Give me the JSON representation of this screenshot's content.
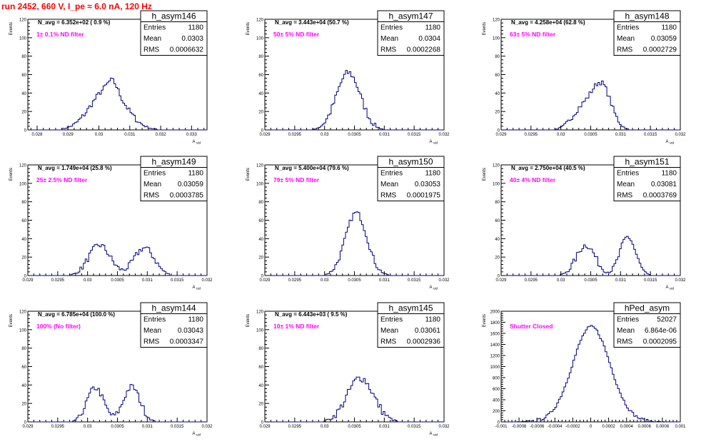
{
  "title": "run 2452,   660 V, I_pe ≈ 6.0 nA, 120 Hz",
  "stat_labels": {
    "entries": "Entries",
    "mean": "Mean",
    "rms": "RMS"
  },
  "colors": {
    "title": "#ff0000",
    "annotation": "#ff00ff",
    "hist": "#000080",
    "axis": "#000000"
  },
  "chart_data": [
    {
      "type": "histogram",
      "name": "h_asym146",
      "navg": "N_avg = 6.352e+02 ( 0.9 %)",
      "note": "1± 0.1% ND filter",
      "entries": "1180",
      "mean": "0.0303",
      "rms": "0.0006632",
      "ylabel": "Events",
      "xlabel": "A_uid",
      "xlim": [
        0.0277,
        0.0335
      ],
      "ylim": [
        0,
        120
      ],
      "xticks": [
        "0.028",
        "0.029",
        "0.03",
        "0.031",
        "0.032",
        "0.033"
      ],
      "xtick_values": [
        0.028,
        0.029,
        0.03,
        0.031,
        0.032,
        0.033
      ],
      "yticks": [
        "0",
        "20",
        "40",
        "60",
        "80",
        "100",
        "120"
      ],
      "shape": {
        "peaks": [
          [
            0.0303,
            45,
            0.00055
          ],
          [
            0.03045,
            10,
            0.00015
          ]
        ],
        "noise": 6,
        "bins": 100
      }
    },
    {
      "type": "histogram",
      "name": "h_asym147",
      "navg": "N_avg = 3.443e+04 (50.7 %)",
      "note": "50± 5% ND filter",
      "entries": "1180",
      "mean": "0.0304",
      "rms": "0.0002268",
      "ylabel": "Events",
      "xlabel": "A_uid",
      "xlim": [
        0.029,
        0.032
      ],
      "ylim": [
        0,
        120
      ],
      "xticks": [
        "0.029",
        "0.0295",
        "0.03",
        "0.0305",
        "0.031",
        "0.0315",
        "0.032"
      ],
      "xtick_values": [
        0.029,
        0.0295,
        0.03,
        0.0305,
        0.031,
        0.0315,
        0.032
      ],
      "yticks": [
        "0",
        "20",
        "40",
        "60",
        "80",
        "100",
        "120"
      ],
      "shape": {
        "peaks": [
          [
            0.0304,
            62,
            0.0002
          ]
        ],
        "noise": 8,
        "bins": 100
      }
    },
    {
      "type": "histogram",
      "name": "h_asym148",
      "navg": "N_avg = 4.258e+04 (62.8 %)",
      "note": "63± 5% ND filter",
      "entries": "1180",
      "mean": "0.03059",
      "rms": "0.0002729",
      "ylabel": "Events",
      "xlabel": "A_uid",
      "xlim": [
        0.029,
        0.032
      ],
      "ylim": [
        0,
        120
      ],
      "xticks": [
        "0.029",
        "0.0295",
        "0.03",
        "0.0305",
        "0.031",
        "0.0315",
        "0.032"
      ],
      "xtick_values": [
        0.029,
        0.0295,
        0.03,
        0.0305,
        0.031,
        0.0315,
        0.032
      ],
      "yticks": [
        "0",
        "20",
        "40",
        "60",
        "80",
        "100",
        "120"
      ],
      "shape": {
        "peaks": [
          [
            0.03068,
            48,
            0.00016
          ],
          [
            0.03035,
            22,
            0.00017
          ]
        ],
        "noise": 6,
        "bins": 100
      }
    },
    {
      "type": "histogram",
      "name": "h_asym149",
      "navg": "N_avg = 1.749e+04 (25.8 %)",
      "note": "25± 2.5% ND filter",
      "entries": "1180",
      "mean": "0.03059",
      "rms": "0.0003785",
      "ylabel": "Events",
      "xlabel": "A_uid",
      "xlim": [
        0.029,
        0.032
      ],
      "ylim": [
        0,
        120
      ],
      "xticks": [
        "0.029",
        "0.0295",
        "0.03",
        "0.0305",
        "0.031",
        "0.0315",
        "0.032"
      ],
      "xtick_values": [
        0.029,
        0.0295,
        0.03,
        0.0305,
        0.031,
        0.0315,
        0.032
      ],
      "yticks": [
        "0",
        "20",
        "40",
        "60",
        "80",
        "100",
        "120"
      ],
      "shape": {
        "peaks": [
          [
            0.0302,
            33,
            0.00018
          ],
          [
            0.03095,
            30,
            0.00017
          ]
        ],
        "noise": 7,
        "bins": 100
      }
    },
    {
      "type": "histogram",
      "name": "h_asym150",
      "navg": "N_avg = 5.400e+04 (79.6 %)",
      "note": "79± 5% ND filter",
      "entries": "1180",
      "mean": "0.03053",
      "rms": "0.0001975",
      "ylabel": "Events",
      "xlabel": "A_uid",
      "xlim": [
        0.029,
        0.032
      ],
      "ylim": [
        0,
        120
      ],
      "xticks": [
        "0.029",
        "0.0295",
        "0.03",
        "0.0305",
        "0.031",
        "0.0315",
        "0.032"
      ],
      "xtick_values": [
        0.029,
        0.0295,
        0.03,
        0.0305,
        0.031,
        0.0315,
        0.032
      ],
      "yticks": [
        "0",
        "20",
        "40",
        "60",
        "80",
        "100",
        "120"
      ],
      "shape": {
        "peaks": [
          [
            0.03053,
            68,
            0.00018
          ]
        ],
        "noise": 6,
        "bins": 100
      }
    },
    {
      "type": "histogram",
      "name": "h_asym151",
      "navg": "N_avg = 2.750e+04 (40.5 %)",
      "note": "40± 4% ND filter",
      "entries": "1180",
      "mean": "0.03081",
      "rms": "0.0003769",
      "ylabel": "Events",
      "xlabel": "A_uid",
      "xlim": [
        0.029,
        0.032
      ],
      "ylim": [
        0,
        120
      ],
      "xticks": [
        "0.029",
        "0.0295",
        "0.03",
        "0.0305",
        "0.031",
        "0.0315",
        "0.032"
      ],
      "xtick_values": [
        0.029,
        0.0295,
        0.03,
        0.0305,
        0.031,
        0.0315,
        0.032
      ],
      "yticks": [
        "0",
        "20",
        "40",
        "60",
        "80",
        "100",
        "120"
      ],
      "shape": {
        "peaks": [
          [
            0.03042,
            33,
            0.00016
          ],
          [
            0.03112,
            42,
            0.00013
          ]
        ],
        "noise": 7,
        "bins": 100
      }
    },
    {
      "type": "histogram",
      "name": "h_asym144",
      "navg": "N_avg = 6.785e+04 (100.0 %)",
      "note": "100% (No filter)",
      "entries": "1180",
      "mean": "0.03043",
      "rms": "0.0003347",
      "ylabel": "Events",
      "xlabel": "A_uid",
      "xlim": [
        0.029,
        0.032
      ],
      "ylim": [
        0,
        120
      ],
      "xticks": [
        "0.029",
        "0.0295",
        "0.03",
        "0.0305",
        "0.031",
        "0.0315",
        "0.032"
      ],
      "xtick_values": [
        0.029,
        0.0295,
        0.03,
        0.0305,
        0.031,
        0.0315,
        0.032
      ],
      "yticks": [
        "0",
        "20",
        "40",
        "60",
        "80",
        "100",
        "120"
      ],
      "shape": {
        "peaks": [
          [
            0.03013,
            37,
            0.00014
          ],
          [
            0.03074,
            38,
            0.00014
          ]
        ],
        "noise": 7,
        "bins": 100
      }
    },
    {
      "type": "histogram",
      "name": "h_asym145",
      "navg": "N_avg = 6.443e+03 ( 9.5 %)",
      "note": "10± 1% ND filter",
      "entries": "1180",
      "mean": "0.03061",
      "rms": "0.0002936",
      "ylabel": "Events",
      "xlabel": "A_uid",
      "xlim": [
        0.029,
        0.032
      ],
      "ylim": [
        0,
        120
      ],
      "xticks": [
        "0.029",
        "0.0295",
        "0.03",
        "0.0305",
        "0.031",
        "0.0315",
        "0.032"
      ],
      "xtick_values": [
        0.029,
        0.0295,
        0.03,
        0.0305,
        0.031,
        0.0315,
        0.032
      ],
      "yticks": [
        "0",
        "20",
        "40",
        "60",
        "80",
        "100",
        "120"
      ],
      "shape": {
        "peaks": [
          [
            0.0306,
            48,
            0.00022
          ]
        ],
        "noise": 9,
        "bins": 100
      }
    },
    {
      "type": "histogram",
      "name": "hPed_asym",
      "navg": "",
      "note": "Shutter Closed",
      "entries": "52027",
      "mean": "6.864e-06",
      "rms": "0.0002095",
      "ylabel": "Events",
      "xlabel": "",
      "xlim": [
        -0.001,
        0.001
      ],
      "ylim": [
        0,
        2000
      ],
      "xticks": [
        "-0.001",
        "-0.0008",
        "-0.0006",
        "-0.0004",
        "-0.0002",
        "0",
        "0.0002",
        "0.0004",
        "0.0006",
        "0.0008",
        "0.001"
      ],
      "xtick_values": [
        -0.001,
        -0.0008,
        -0.0006,
        -0.0004,
        -0.0002,
        0,
        0.0002,
        0.0004,
        0.0006,
        0.0008,
        0.001
      ],
      "yticks": [
        "0",
        "200",
        "400",
        "600",
        "800",
        "1000",
        "1200",
        "1400",
        "1600",
        "1800",
        "2000"
      ],
      "shape": {
        "peaks": [
          [
            6.9e-06,
            1720,
            0.00021
          ]
        ],
        "noise": 50,
        "bins": 100
      }
    }
  ]
}
